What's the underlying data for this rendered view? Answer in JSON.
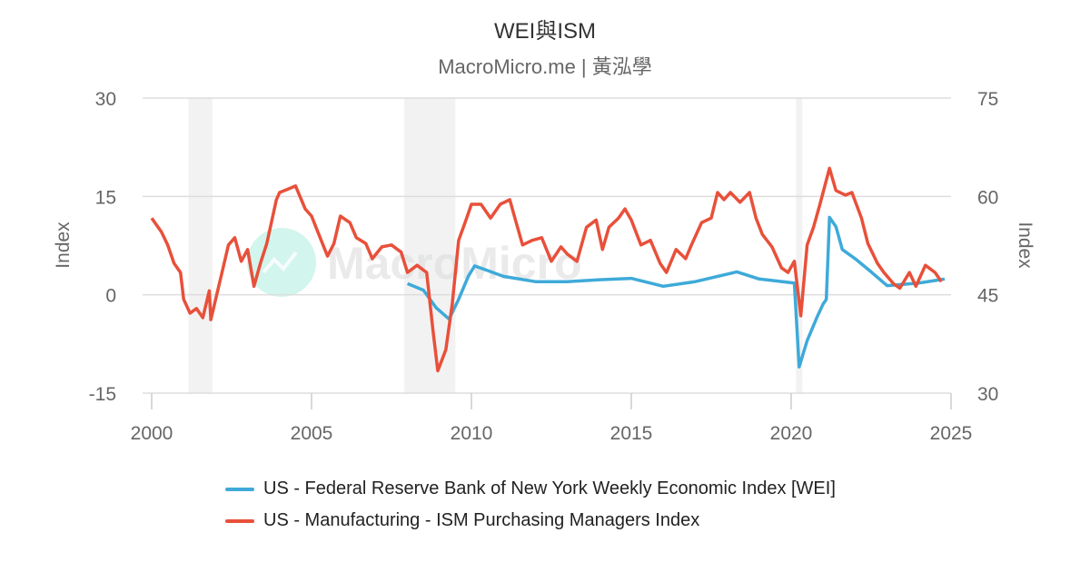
{
  "title": "WEI與ISM",
  "subtitle": "MacroMicro.me | 黃泓學",
  "watermark": "MacroMicro",
  "chart_data": {
    "type": "line",
    "xlim": [
      2000,
      2025
    ],
    "xticks": [
      "2000",
      "2005",
      "2010",
      "2015",
      "2020",
      "2025"
    ],
    "left_axis": {
      "label": "Index",
      "ylim": [
        -15,
        30
      ],
      "ticks": [
        "-15",
        "0",
        "15",
        "30"
      ]
    },
    "right_axis": {
      "label": "Index",
      "ylim": [
        30,
        75
      ],
      "ticks": [
        "30",
        "45",
        "60",
        "75"
      ]
    },
    "grid": true,
    "legend_position": "bottom",
    "recession_shading": [
      [
        2001.15,
        2001.9
      ],
      [
        2007.9,
        2009.5
      ],
      [
        2020.15,
        2020.35
      ]
    ],
    "series": [
      {
        "name": "US - Federal Reserve Bank of New York Weekly Economic Index [WEI]",
        "color": "#3eaad9",
        "axis": "left",
        "x": [
          2008.0,
          2008.5,
          2008.9,
          2009.3,
          2009.6,
          2009.9,
          2010.1,
          2010.5,
          2011.0,
          2012.0,
          2013.0,
          2014.0,
          2015.0,
          2016.0,
          2017.0,
          2018.3,
          2019.0,
          2020.1,
          2020.25,
          2020.5,
          2020.8,
          2021.0,
          2021.1,
          2021.2,
          2021.4,
          2021.6,
          2022.0,
          2022.5,
          2023.0,
          2024.0,
          2024.8
        ],
        "y": [
          1.7,
          0.7,
          -2,
          -3.7,
          -0.7,
          2.8,
          4.4,
          3.7,
          2.8,
          2,
          2,
          2.3,
          2.5,
          1.3,
          2,
          3.5,
          2.4,
          1.8,
          -11,
          -7,
          -3.5,
          -1.4,
          -0.7,
          11.8,
          10.4,
          6.9,
          5.5,
          3.5,
          1.4,
          1.8,
          2.4
        ]
      },
      {
        "name": "US - Manufacturing - ISM Purchasing Managers Index",
        "color": "#e8503a",
        "axis": "right",
        "x": [
          2000.0,
          2000.3,
          2000.5,
          2000.7,
          2000.9,
          2001.0,
          2001.2,
          2001.4,
          2001.6,
          2001.8,
          2001.85,
          2002.0,
          2002.2,
          2002.4,
          2002.6,
          2002.8,
          2003.0,
          2003.2,
          2003.4,
          2003.6,
          2003.9,
          2004.0,
          2004.3,
          2004.5,
          2004.8,
          2005.0,
          2005.3,
          2005.5,
          2005.7,
          2005.9,
          2006.2,
          2006.4,
          2006.7,
          2006.9,
          2007.2,
          2007.5,
          2007.8,
          2008.0,
          2008.3,
          2008.6,
          2008.8,
          2008.95,
          2009.2,
          2009.4,
          2009.6,
          2009.8,
          2010.0,
          2010.3,
          2010.6,
          2010.9,
          2011.2,
          2011.4,
          2011.6,
          2011.9,
          2012.2,
          2012.5,
          2012.8,
          2013.0,
          2013.3,
          2013.6,
          2013.9,
          2014.1,
          2014.3,
          2014.6,
          2014.8,
          2015.0,
          2015.3,
          2015.6,
          2015.9,
          2016.1,
          2016.4,
          2016.7,
          2016.9,
          2017.2,
          2017.5,
          2017.7,
          2017.9,
          2018.1,
          2018.4,
          2018.7,
          2018.9,
          2019.1,
          2019.4,
          2019.7,
          2019.9,
          2020.1,
          2020.3,
          2020.5,
          2020.7,
          2020.9,
          2021.2,
          2021.4,
          2021.7,
          2021.9,
          2022.2,
          2022.4,
          2022.7,
          2022.9,
          2023.2,
          2023.4,
          2023.7,
          2023.9,
          2024.2,
          2024.5,
          2024.7
        ],
        "y": [
          56.7,
          54.6,
          52.6,
          49.8,
          48.4,
          44.3,
          42.2,
          42.9,
          41.5,
          45.6,
          41.2,
          44.3,
          48.4,
          52.6,
          53.7,
          50.1,
          51.9,
          46.3,
          49.8,
          52.8,
          59.5,
          60.6,
          61.2,
          61.6,
          58.1,
          57,
          53.3,
          50.9,
          52.8,
          57,
          56,
          53.7,
          52.8,
          50.5,
          52.3,
          52.6,
          51.5,
          48.4,
          49.5,
          48.4,
          39.4,
          33.4,
          36.6,
          43.6,
          53.3,
          56,
          58.8,
          58.8,
          56.7,
          58.8,
          59.5,
          56,
          52.6,
          53.3,
          53.7,
          50.1,
          52.3,
          51.2,
          50.1,
          55.3,
          56.4,
          51.9,
          55.3,
          56.7,
          58.1,
          56.4,
          52.6,
          53.3,
          49.8,
          48.4,
          51.9,
          50.5,
          52.8,
          56,
          56.7,
          60.6,
          59.5,
          60.6,
          59.1,
          60.6,
          56.7,
          54.2,
          52.3,
          49.1,
          48.4,
          50.1,
          41.8,
          52.6,
          55.3,
          58.8,
          64.3,
          60.9,
          60.2,
          60.6,
          56.7,
          52.8,
          49.8,
          48.4,
          46.7,
          46,
          48.4,
          46.3,
          49.5,
          48.4,
          47
        ]
      }
    ]
  }
}
